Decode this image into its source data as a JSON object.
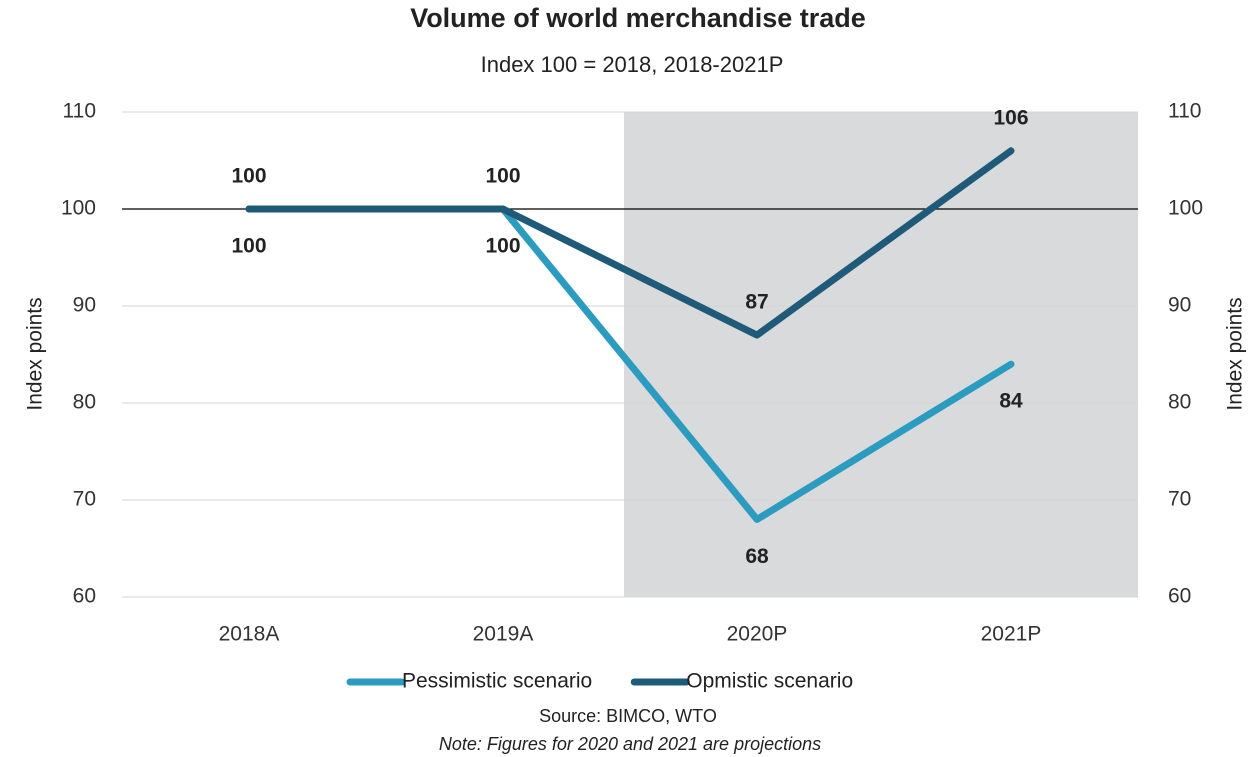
{
  "chart_data": {
    "type": "line",
    "title": "Volume of world merchandise trade",
    "subtitle": "Index 100 = 2018, 2018-2021P",
    "y_label": "Index points",
    "y2_label": "Index points",
    "categories": [
      "2018A",
      "2019A",
      "2020P",
      "2021P"
    ],
    "series": [
      {
        "name": "Pessimistic scenario",
        "color": "#2b9cc0",
        "values": [
          100,
          100,
          68,
          84
        ]
      },
      {
        "name": "Opmistic scenario",
        "color": "#1f5b79",
        "values": [
          100,
          100,
          87,
          106
        ]
      }
    ],
    "ylim": [
      60,
      110
    ],
    "yticks": [
      60,
      70,
      80,
      90,
      100,
      110
    ],
    "y2lim": [
      60,
      110
    ],
    "y2ticks": [
      60,
      70,
      80,
      90,
      100,
      110
    ],
    "reference_line": 100,
    "grid": true,
    "legend": "bottom",
    "source": "Source: BIMCO, WTO",
    "note": "Note: Figures for 2020 and 2021 are projections"
  }
}
